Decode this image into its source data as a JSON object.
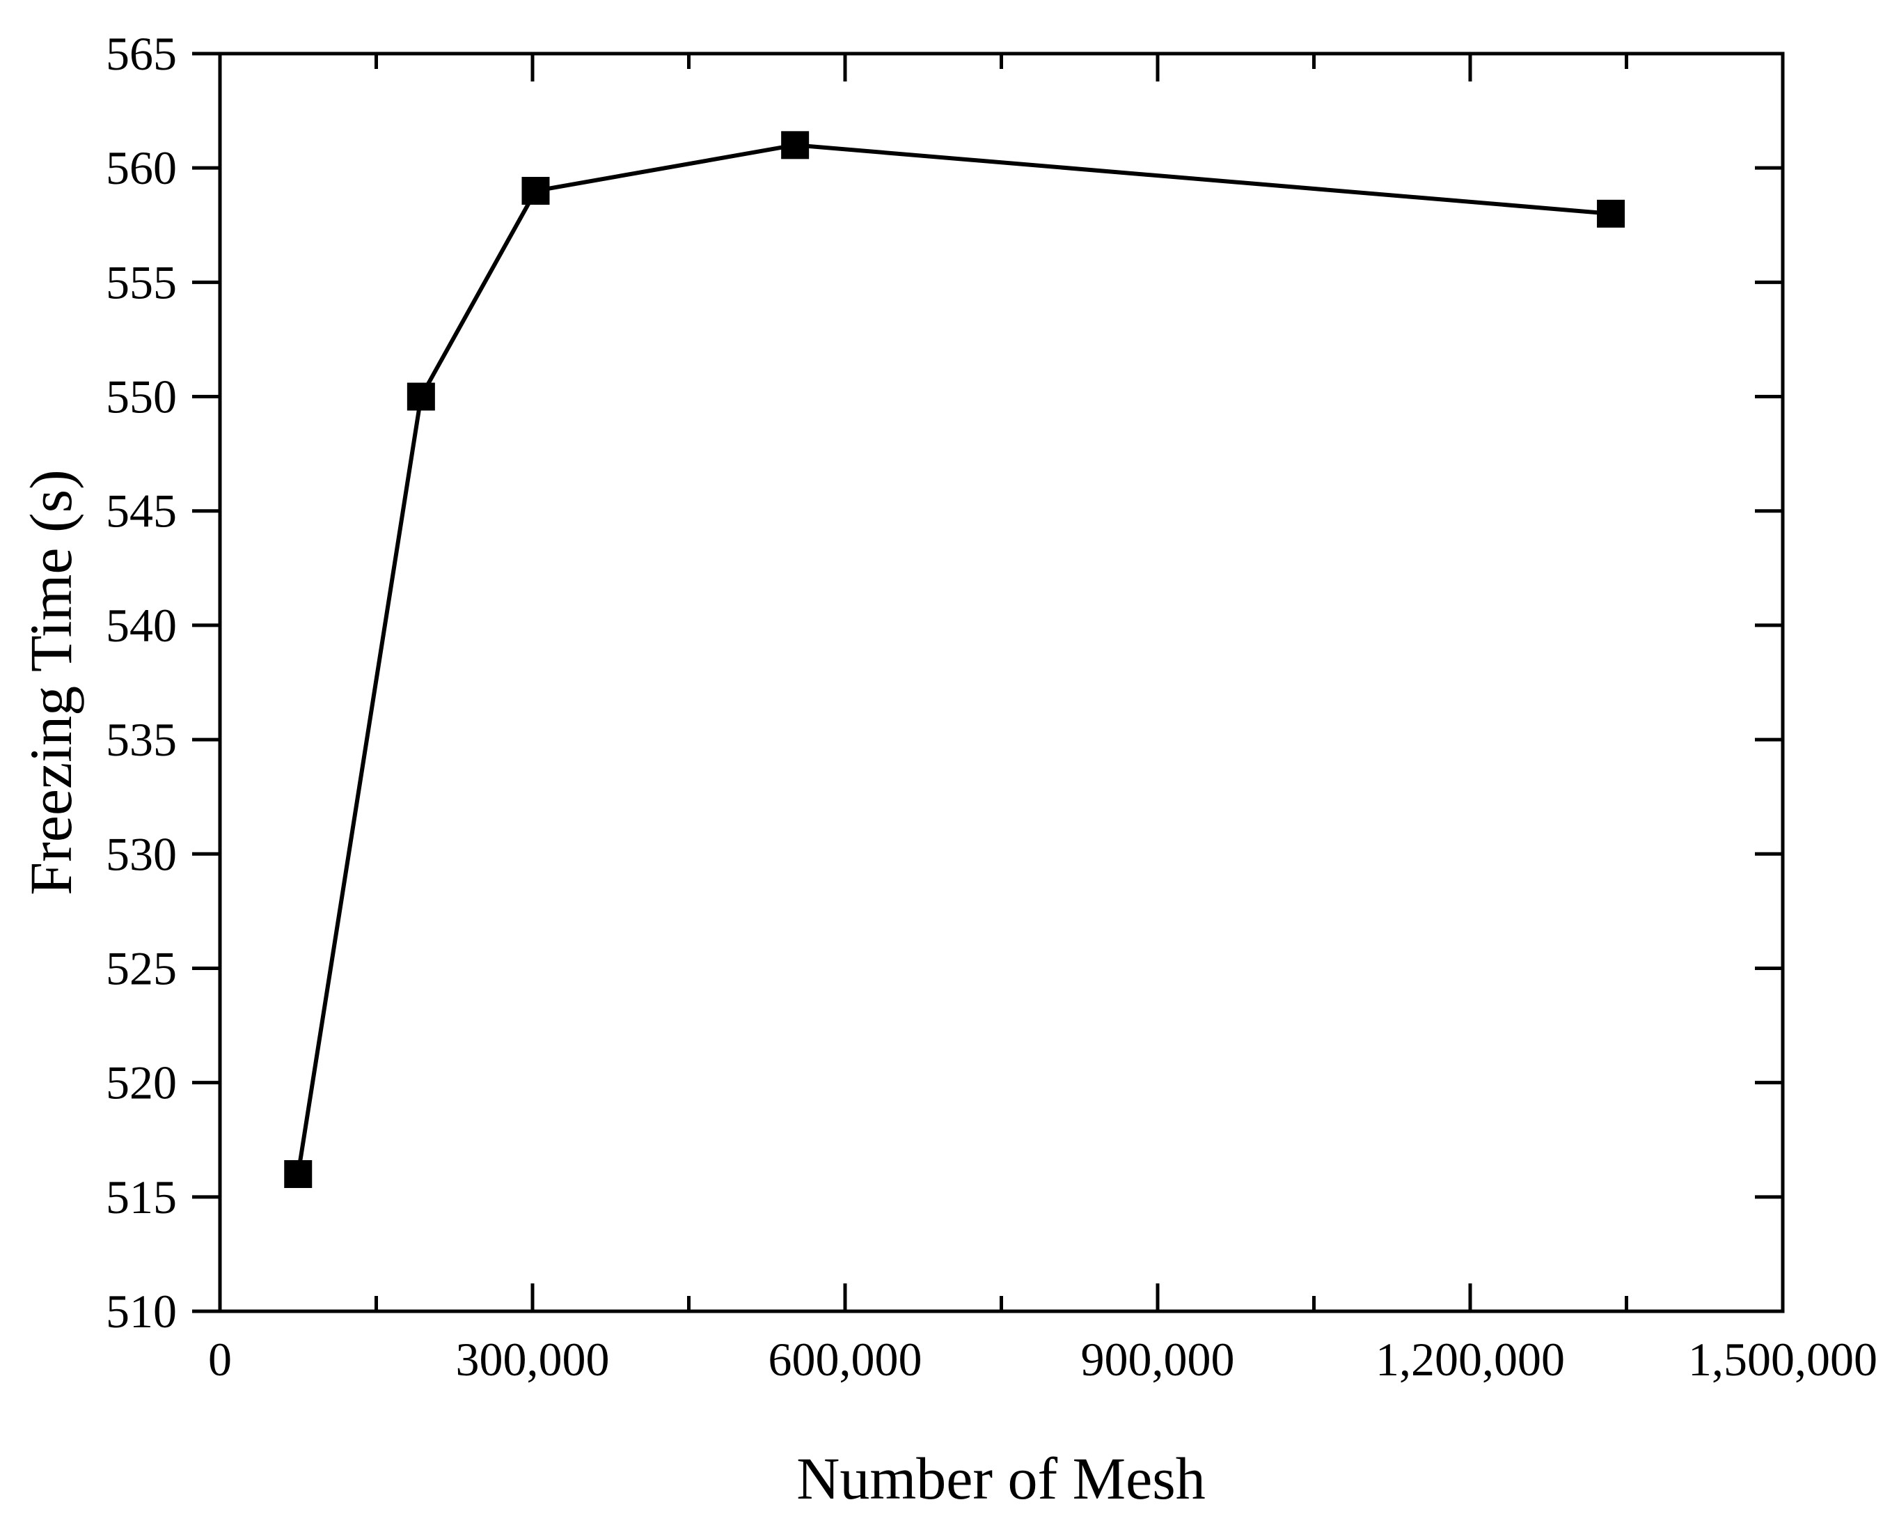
{
  "chart_data": {
    "type": "line",
    "title": "",
    "xlabel": "Number of Mesh",
    "ylabel": "Freezing Time (s)",
    "xlim": [
      0,
      1500000
    ],
    "ylim": [
      510,
      565
    ],
    "x_ticks": [
      0,
      300000,
      600000,
      900000,
      1200000,
      1500000
    ],
    "x_tick_labels": [
      "0",
      "300,000",
      "600,000",
      "900,000",
      "1,200,000",
      "1,500,000"
    ],
    "y_ticks": [
      510,
      515,
      520,
      525,
      530,
      535,
      540,
      545,
      550,
      555,
      560,
      565
    ],
    "y_tick_labels": [
      "510",
      "515",
      "520",
      "525",
      "530",
      "535",
      "540",
      "545",
      "550",
      "555",
      "560",
      "565"
    ],
    "grid": false,
    "legend": "none",
    "marker": "square",
    "color": "#000000",
    "series": [
      {
        "x": [
          75000,
          193000,
          303000,
          552000,
          1335000
        ],
        "y": [
          516,
          550,
          559,
          561,
          558
        ]
      }
    ]
  }
}
